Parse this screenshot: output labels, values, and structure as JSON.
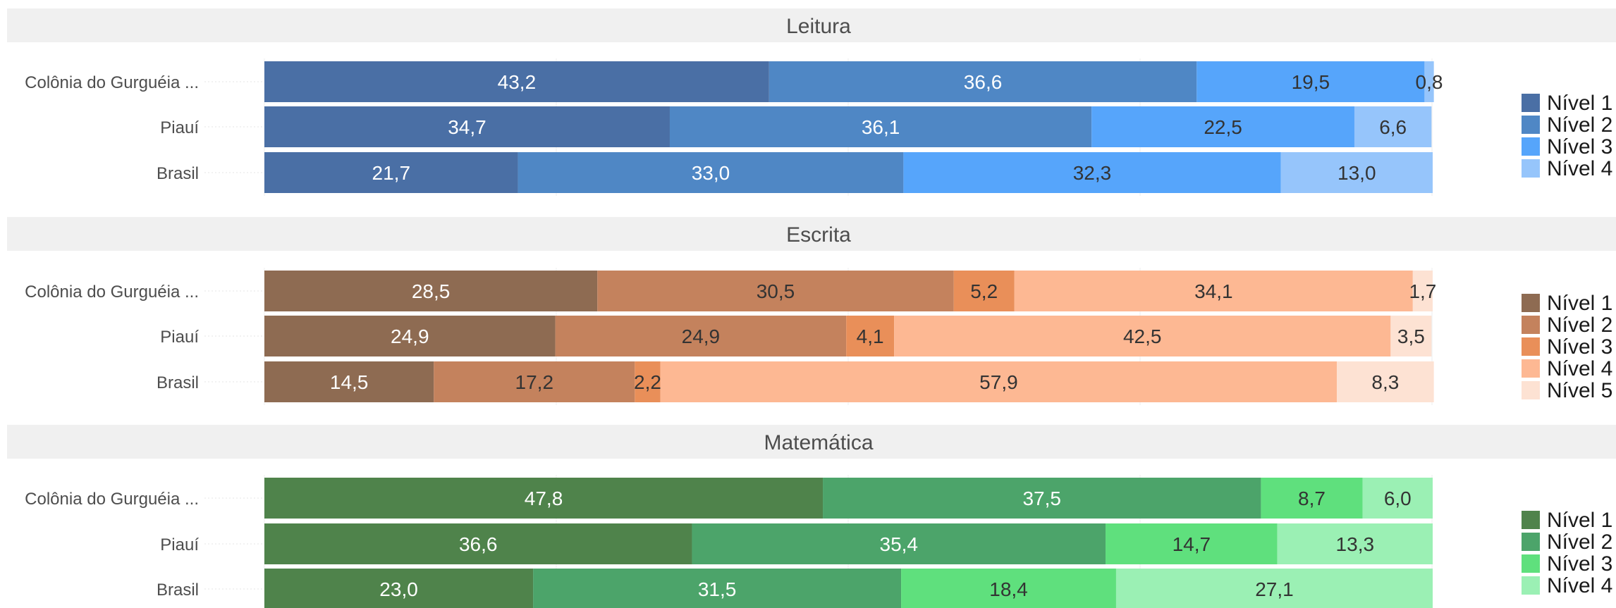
{
  "chart_data": [
    {
      "type": "bar",
      "orientation": "horizontal",
      "stacked": true,
      "title": "Leitura",
      "categories": [
        "Colônia do Gurguéia ...",
        "Piauí",
        "Brasil"
      ],
      "series": [
        {
          "name": "Nível 1",
          "color": "#4a6fa5",
          "values": [
            43.2,
            34.7,
            21.7
          ],
          "labels": [
            "43,2",
            "34,7",
            "21,7"
          ]
        },
        {
          "name": "Nível 2",
          "color": "#4f87c5",
          "values": [
            36.6,
            36.1,
            33.0
          ],
          "labels": [
            "36,6",
            "36,1",
            "33,0"
          ]
        },
        {
          "name": "Nível 3",
          "color": "#56a5fb",
          "values": [
            19.5,
            22.5,
            32.3
          ],
          "labels": [
            "19,5",
            "22,5",
            "32,3"
          ]
        },
        {
          "name": "Nível 4",
          "color": "#96c5fb",
          "values": [
            0.8,
            6.6,
            13.0
          ],
          "labels": [
            "0,8",
            "6,6",
            "13,0"
          ]
        }
      ],
      "xlim": [
        0,
        100
      ],
      "legend": "right",
      "grid": true
    },
    {
      "type": "bar",
      "orientation": "horizontal",
      "stacked": true,
      "title": "Escrita",
      "categories": [
        "Colônia do Gurguéia ...",
        "Piauí",
        "Brasil"
      ],
      "series": [
        {
          "name": "Nível 1",
          "color": "#8e6b52",
          "values": [
            28.5,
            24.9,
            14.5
          ],
          "labels": [
            "28,5",
            "24,9",
            "14,5"
          ]
        },
        {
          "name": "Nível 2",
          "color": "#c4825d",
          "values": [
            30.5,
            24.9,
            17.2
          ],
          "labels": [
            "30,5",
            "24,9",
            "17,2"
          ]
        },
        {
          "name": "Nível 3",
          "color": "#e98f59",
          "values": [
            5.2,
            4.1,
            2.2
          ],
          "labels": [
            "5,2",
            "4,1",
            "2,2"
          ]
        },
        {
          "name": "Nível 4",
          "color": "#fdb893",
          "values": [
            34.1,
            42.5,
            57.9
          ],
          "labels": [
            "34,1",
            "42,5",
            "57,9"
          ]
        },
        {
          "name": "Nível 5",
          "color": "#fde2d3",
          "values": [
            1.7,
            3.5,
            8.3
          ],
          "labels": [
            "1,7",
            "3,5",
            "8,3"
          ]
        }
      ],
      "xlim": [
        0,
        100
      ],
      "legend": "right",
      "grid": true
    },
    {
      "type": "bar",
      "orientation": "horizontal",
      "stacked": true,
      "title": "Matemática",
      "categories": [
        "Colônia do Gurguéia ...",
        "Piauí",
        "Brasil"
      ],
      "series": [
        {
          "name": "Nível 1",
          "color": "#4f834b",
          "values": [
            47.8,
            36.6,
            23.0
          ],
          "labels": [
            "47,8",
            "36,6",
            "23,0"
          ]
        },
        {
          "name": "Nível 2",
          "color": "#4ca46a",
          "values": [
            37.5,
            35.4,
            31.5
          ],
          "labels": [
            "37,5",
            "35,4",
            "31,5"
          ]
        },
        {
          "name": "Nível 3",
          "color": "#5fe07d",
          "values": [
            8.7,
            14.7,
            18.4
          ],
          "labels": [
            "8,7",
            "14,7",
            "18,4"
          ]
        },
        {
          "name": "Nível 4",
          "color": "#9bf0b4",
          "values": [
            6.0,
            13.3,
            27.1
          ],
          "labels": [
            "6,0",
            "13,3",
            "27,1"
          ]
        }
      ],
      "xlim": [
        0,
        100
      ],
      "legend": "right",
      "grid": true
    }
  ]
}
